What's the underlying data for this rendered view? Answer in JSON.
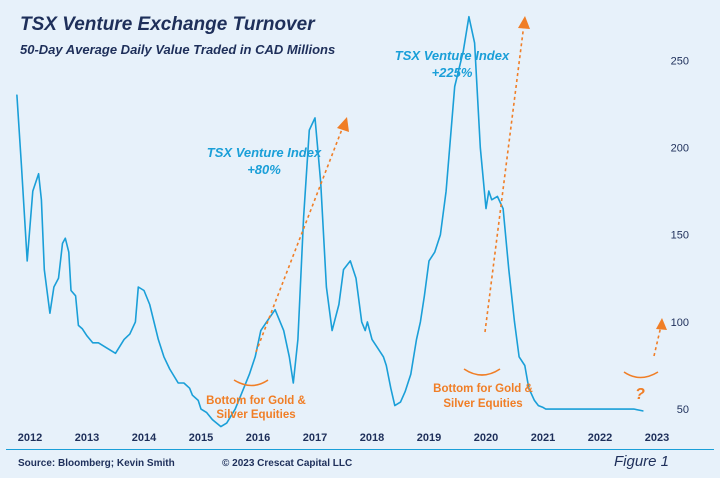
{
  "header": {
    "title": "TSX Venture Exchange Turnover",
    "subtitle": "50-Day Average Daily Value Traded in CAD Millions"
  },
  "footer": {
    "source": "Source: Bloomberg; Kevin Smith",
    "copyright": "© 2023 Crescat Capital LLC",
    "figure": "Figure 1"
  },
  "colors": {
    "line": "#1a9fd8",
    "annotation_blue": "#1a9fd8",
    "annotation_orange": "#f07e26",
    "text": "#1e2f5a",
    "background": "#e7f1fa"
  },
  "chart_data": {
    "type": "line",
    "title": "TSX Venture Exchange Turnover",
    "subtitle": "50-Day Average Daily Value Traded in CAD Millions",
    "xlabel": "",
    "ylabel": "",
    "xlim": [
      2011.75,
      2023.2
    ],
    "ylim": [
      30,
      280
    ],
    "y_axis_position": "right",
    "grid": false,
    "legend": "none",
    "x_ticks": [
      2012,
      2013,
      2014,
      2015,
      2016,
      2017,
      2018,
      2019,
      2020,
      2021,
      2022,
      2023
    ],
    "x_tick_labels": [
      "2012",
      "2013",
      "2014",
      "2015",
      "2016",
      "2017",
      "2018",
      "2019",
      "2020",
      "2021",
      "2022",
      "2023"
    ],
    "y_ticks": [
      50,
      100,
      150,
      200,
      250
    ],
    "y_tick_labels": [
      "50",
      "100",
      "150",
      "200",
      "250"
    ],
    "series": [
      {
        "x": [
          2011.77,
          2011.85,
          2011.95,
          2012.05,
          2012.15,
          2012.2,
          2012.25,
          2012.35,
          2012.42,
          2012.5,
          2012.57,
          2012.62,
          2012.68,
          2012.72,
          2012.8,
          2012.85,
          2012.92,
          2013.0,
          2013.1,
          2013.2,
          2013.35,
          2013.5,
          2013.65,
          2013.75,
          2013.85,
          2013.9,
          2014.0,
          2014.1,
          2014.25,
          2014.35,
          2014.45,
          2014.6,
          2014.7,
          2014.8,
          2014.85,
          2014.95,
          2015.0,
          2015.1,
          2015.2,
          2015.35,
          2015.45,
          2015.6,
          2015.7,
          2015.85,
          2015.95,
          2016.05,
          2016.15,
          2016.3,
          2016.45,
          2016.55,
          2016.62,
          2016.7,
          2016.8,
          2016.9,
          2017.0,
          2017.1,
          2017.2,
          2017.3,
          2017.42,
          2017.5,
          2017.62,
          2017.72,
          2017.82,
          2017.88,
          2017.92,
          2018.0,
          2018.1,
          2018.2,
          2018.25,
          2018.33,
          2018.4,
          2018.5,
          2018.58,
          2018.68,
          2018.78,
          2018.85,
          2018.92,
          2019.0,
          2019.1,
          2019.2,
          2019.3,
          2019.45,
          2019.6,
          2019.7,
          2019.8,
          2019.9,
          2020.0,
          2020.05,
          2020.1,
          2020.2,
          2020.3,
          2020.4,
          2020.5,
          2020.58,
          2020.68,
          2020.75,
          2020.85,
          2020.92,
          2021.0,
          2021.05,
          2021.08,
          2021.15,
          2021.22,
          2021.3,
          2021.35,
          2021.45,
          2021.52,
          2021.6,
          2021.67,
          2021.73,
          2021.8,
          2021.87,
          2021.92,
          2022.0,
          2022.1,
          2022.2,
          2022.3,
          2022.4,
          2022.5,
          2022.6,
          2022.75
        ],
        "values": [
          230,
          190,
          135,
          175,
          185,
          170,
          130,
          105,
          120,
          125,
          145,
          148,
          140,
          118,
          115,
          98,
          96,
          92,
          88,
          88,
          85,
          82,
          90,
          93,
          100,
          120,
          118,
          110,
          90,
          80,
          73,
          65,
          65,
          62,
          58,
          55,
          50,
          48,
          44,
          40,
          42,
          50,
          58,
          70,
          80,
          95,
          100,
          107,
          95,
          80,
          65,
          90,
          160,
          210,
          217,
          180,
          120,
          95,
          110,
          130,
          135,
          125,
          100,
          95,
          100,
          90,
          85,
          80,
          75,
          62,
          52,
          54,
          60,
          70,
          90,
          100,
          115,
          135,
          140,
          150,
          175,
          235,
          255,
          275,
          260,
          200,
          165,
          175,
          170,
          172,
          165,
          130,
          100,
          80,
          75,
          62,
          55,
          52,
          51,
          50,
          50,
          50,
          50,
          50,
          50,
          50,
          50,
          50,
          50,
          50,
          50,
          50,
          50,
          50,
          50,
          50,
          50,
          50,
          50,
          50,
          49
        ]
      }
    ],
    "annotations": [
      {
        "text_lines": [
          "TSX Venture Index",
          "+80%"
        ]
      },
      {
        "text_lines": [
          "TSX Venture Index",
          "+225%"
        ]
      },
      {
        "text_lines": [
          "Bottom for Gold &",
          "Silver Equities"
        ]
      },
      {
        "text_lines": [
          "Bottom for Gold &",
          "Silver Equities"
        ]
      },
      {
        "text_lines": [
          "?"
        ]
      }
    ]
  }
}
